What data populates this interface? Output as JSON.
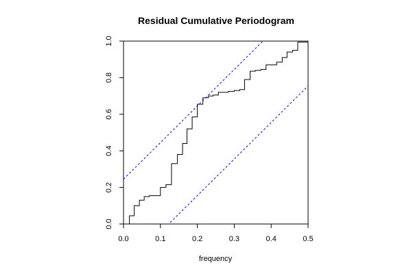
{
  "chart_data": {
    "type": "line",
    "title": "Residual Cumulative Periodogram",
    "xlabel": "frequency",
    "ylabel": "",
    "xlim": [
      0,
      0.5
    ],
    "ylim": [
      0,
      1
    ],
    "x_ticks": [
      "0.0",
      "0.1",
      "0.2",
      "0.3",
      "0.4",
      "0.5"
    ],
    "y_ticks": [
      "0.0",
      "0.2",
      "0.4",
      "0.6",
      "0.8",
      "1.0"
    ],
    "grid": false,
    "series": [
      {
        "style": "step",
        "color": "#000000",
        "x": [
          0.0,
          0.016,
          0.029,
          0.043,
          0.056,
          0.07,
          0.1,
          0.115,
          0.13,
          0.146,
          0.16,
          0.172,
          0.186,
          0.2,
          0.215,
          0.23,
          0.243,
          0.257,
          0.27,
          0.284,
          0.3,
          0.315,
          0.328,
          0.343,
          0.357,
          0.372,
          0.386,
          0.4,
          0.415,
          0.43,
          0.443,
          0.458,
          0.472,
          0.486,
          0.5
        ],
        "y": [
          0.0,
          0.045,
          0.1,
          0.13,
          0.15,
          0.155,
          0.2,
          0.215,
          0.33,
          0.38,
          0.44,
          0.52,
          0.585,
          0.655,
          0.69,
          0.7,
          0.705,
          0.72,
          0.72,
          0.725,
          0.73,
          0.735,
          0.79,
          0.835,
          0.84,
          0.845,
          0.87,
          0.87,
          0.885,
          0.91,
          0.94,
          0.95,
          0.995,
          0.995,
          0.995
        ]
      },
      {
        "style": "dashed",
        "color": "#0000ff",
        "x": [
          0.0,
          0.5
        ],
        "y": [
          0.245,
          1.245
        ]
      },
      {
        "style": "dashed",
        "color": "#0000ff",
        "x": [
          0.0,
          0.5
        ],
        "y": [
          -0.245,
          0.755
        ]
      }
    ]
  }
}
